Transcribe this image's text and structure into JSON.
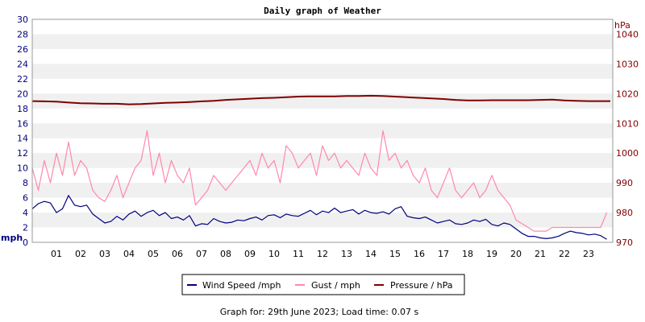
{
  "chart_data": {
    "type": "line",
    "title": "Daily graph of Weather",
    "left_axis": {
      "unit": "mph",
      "ticks": [
        "0",
        "2",
        "4",
        "6",
        "8",
        "10",
        "12",
        "14",
        "16",
        "18",
        "20",
        "22",
        "24",
        "26",
        "28",
        "30"
      ],
      "range": [
        0,
        30
      ]
    },
    "right_axis": {
      "unit": "hPa",
      "ticks": [
        "970",
        "980",
        "990",
        "1000",
        "1010",
        "1020",
        "1030",
        "1040"
      ],
      "range": [
        970,
        1045
      ]
    },
    "x_axis": {
      "ticks": [
        "01",
        "02",
        "03",
        "04",
        "05",
        "06",
        "07",
        "08",
        "09",
        "10",
        "11",
        "12",
        "13",
        "14",
        "15",
        "16",
        "17",
        "18",
        "19",
        "20",
        "21",
        "22",
        "23"
      ],
      "range": [
        0,
        24
      ],
      "unit": "hour"
    },
    "grid": "horizontal bands",
    "legend_position": "bottom-center",
    "series": [
      {
        "name": "Wind Speed /mph",
        "color": "#000080",
        "axis": "left",
        "x": [
          0,
          0.25,
          0.5,
          0.75,
          1,
          1.25,
          1.5,
          1.75,
          2,
          2.25,
          2.5,
          2.75,
          3,
          3.25,
          3.5,
          3.75,
          4,
          4.25,
          4.5,
          4.75,
          5,
          5.25,
          5.5,
          5.75,
          6,
          6.25,
          6.5,
          6.75,
          7,
          7.25,
          7.5,
          7.75,
          8,
          8.25,
          8.5,
          8.75,
          9,
          9.25,
          9.5,
          9.75,
          10,
          10.25,
          10.5,
          10.75,
          11,
          11.25,
          11.5,
          11.75,
          12,
          12.25,
          12.5,
          12.75,
          13,
          13.25,
          13.5,
          13.75,
          14,
          14.25,
          14.5,
          14.75,
          15,
          15.25,
          15.5,
          15.75,
          16,
          16.25,
          16.5,
          16.75,
          17,
          17.25,
          17.5,
          17.75,
          18,
          18.25,
          18.5,
          18.75,
          19,
          19.25,
          19.5,
          19.75,
          20,
          20.25,
          20.5,
          20.75,
          21,
          21.25,
          21.5,
          21.75,
          22,
          22.25,
          22.5,
          22.75,
          23,
          23.25,
          23.5,
          23.75
        ],
        "values": [
          4.5,
          5.2,
          5.5,
          5.3,
          4.0,
          4.5,
          6.3,
          5.0,
          4.8,
          5.0,
          3.8,
          3.2,
          2.6,
          2.8,
          3.5,
          3.0,
          3.8,
          4.2,
          3.5,
          4.0,
          4.3,
          3.6,
          4.0,
          3.2,
          3.4,
          3.0,
          3.6,
          2.2,
          2.5,
          2.4,
          3.2,
          2.8,
          2.6,
          2.7,
          3.0,
          2.9,
          3.2,
          3.4,
          3.0,
          3.6,
          3.7,
          3.3,
          3.8,
          3.6,
          3.5,
          3.9,
          4.3,
          3.7,
          4.2,
          4.0,
          4.6,
          4.0,
          4.2,
          4.4,
          3.8,
          4.3,
          4.0,
          3.9,
          4.1,
          3.8,
          4.5,
          4.8,
          3.5,
          3.3,
          3.2,
          3.4,
          3.0,
          2.6,
          2.8,
          3.0,
          2.5,
          2.4,
          2.6,
          3.0,
          2.8,
          3.1,
          2.4,
          2.2,
          2.6,
          2.4,
          1.8,
          1.2,
          0.8,
          0.8,
          0.6,
          0.5,
          0.6,
          0.8,
          1.2,
          1.5,
          1.3,
          1.2,
          1.0,
          1.1,
          0.9,
          0.4
        ]
      },
      {
        "name": "Gust / mph",
        "color": "#ff88aa",
        "axis": "left",
        "x": [
          0,
          0.25,
          0.5,
          0.75,
          1,
          1.25,
          1.5,
          1.75,
          2,
          2.25,
          2.5,
          2.75,
          3,
          3.25,
          3.5,
          3.75,
          4,
          4.25,
          4.5,
          4.75,
          5,
          5.25,
          5.5,
          5.75,
          6,
          6.25,
          6.5,
          6.75,
          7,
          7.25,
          7.5,
          7.75,
          8,
          8.25,
          8.5,
          8.75,
          9,
          9.25,
          9.5,
          9.75,
          10,
          10.25,
          10.5,
          10.75,
          11,
          11.25,
          11.5,
          11.75,
          12,
          12.25,
          12.5,
          12.75,
          13,
          13.25,
          13.5,
          13.75,
          14,
          14.25,
          14.5,
          14.75,
          15,
          15.25,
          15.5,
          15.75,
          16,
          16.25,
          16.5,
          16.75,
          17,
          17.25,
          17.5,
          17.75,
          18,
          18.25,
          18.5,
          18.75,
          19,
          19.25,
          19.5,
          19.75,
          20,
          20.25,
          20.5,
          20.75,
          21,
          21.25,
          21.5,
          21.75,
          22,
          22.25,
          22.5,
          22.75,
          23,
          23.25,
          23.5,
          23.75
        ],
        "values": [
          10,
          7,
          11,
          8,
          12,
          9,
          13.5,
          9,
          11,
          10,
          7,
          6,
          5.5,
          7,
          9,
          6,
          8,
          10,
          11,
          15,
          9,
          12,
          8,
          11,
          9,
          8,
          10,
          5,
          6,
          7,
          9,
          8,
          7,
          8,
          9,
          10,
          11,
          9,
          12,
          10,
          11,
          8,
          13,
          12,
          10,
          11,
          12,
          9,
          13,
          11,
          12,
          10,
          11,
          10,
          9,
          12,
          10,
          9,
          15,
          11,
          12,
          10,
          11,
          9,
          8,
          10,
          7,
          6,
          8,
          10,
          7,
          6,
          7,
          8,
          6,
          7,
          9,
          7,
          6,
          5,
          3,
          2.5,
          2,
          1.5,
          1.5,
          1.5,
          2,
          2,
          2,
          2,
          2,
          2,
          2,
          2,
          2,
          4
        ]
      },
      {
        "name": "Pressure / hPa",
        "color": "#800000",
        "axis": "right",
        "x": [
          0,
          0.5,
          1,
          1.5,
          2,
          2.5,
          3,
          3.5,
          4,
          4.5,
          5,
          5.5,
          6,
          6.5,
          7,
          7.5,
          8,
          8.5,
          9,
          9.5,
          10,
          10.5,
          11,
          11.5,
          12,
          12.5,
          13,
          13.5,
          14,
          14.5,
          15,
          15.5,
          16,
          16.5,
          17,
          17.5,
          18,
          18.5,
          19,
          19.5,
          20,
          20.5,
          21,
          21.5,
          22,
          22.5,
          23,
          23.5,
          23.9
        ],
        "values": [
          1017.5,
          1017.4,
          1017.3,
          1017.0,
          1016.8,
          1016.7,
          1016.6,
          1016.6,
          1016.4,
          1016.5,
          1016.7,
          1016.9,
          1017.0,
          1017.2,
          1017.4,
          1017.6,
          1017.9,
          1018.1,
          1018.3,
          1018.5,
          1018.6,
          1018.8,
          1019.0,
          1019.1,
          1019.1,
          1019.1,
          1019.2,
          1019.2,
          1019.3,
          1019.2,
          1019.0,
          1018.8,
          1018.6,
          1018.4,
          1018.2,
          1017.9,
          1017.7,
          1017.7,
          1017.8,
          1017.8,
          1017.8,
          1017.8,
          1017.9,
          1018.0,
          1017.7,
          1017.6,
          1017.5,
          1017.5,
          1017.5
        ]
      }
    ]
  },
  "footer": {
    "text": "Graph for: 29th June 2023; Load time: 0.07 s"
  }
}
